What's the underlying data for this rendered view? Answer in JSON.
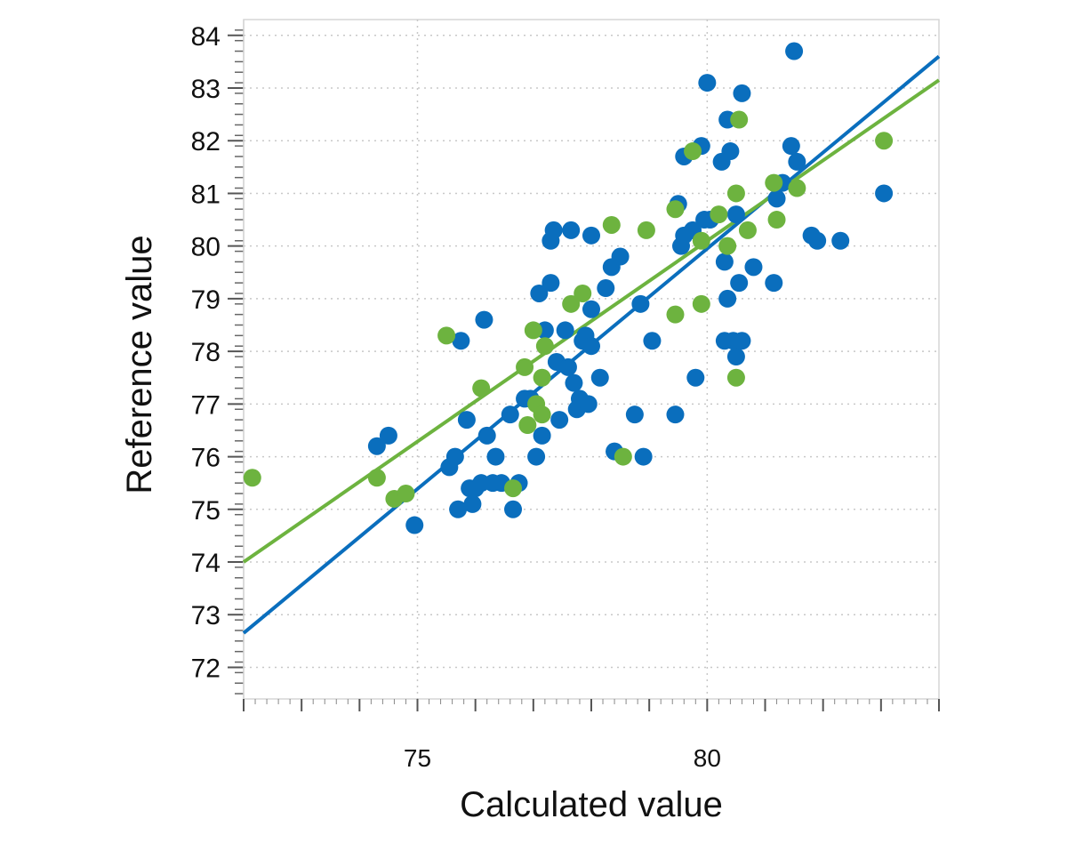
{
  "chart_data": {
    "type": "scatter",
    "title": "",
    "xlabel": "Calculated value",
    "ylabel": "Reference value",
    "xlim": [
      72.0,
      84.0
    ],
    "ylim": [
      71.4,
      84.3
    ],
    "x_tick_labels": [
      75,
      80
    ],
    "x_major_ticks": [
      72,
      73,
      74,
      75,
      76,
      77,
      78,
      79,
      80,
      81,
      82,
      83,
      84
    ],
    "y_tick_labels": [
      72,
      73,
      74,
      75,
      76,
      77,
      78,
      79,
      80,
      81,
      82,
      83,
      84
    ],
    "grid": true,
    "legend": "none",
    "series": [
      {
        "color": "#0a6ebd",
        "points": [
          [
            74.3,
            76.2
          ],
          [
            74.5,
            76.4
          ],
          [
            74.95,
            74.7
          ],
          [
            75.55,
            75.8
          ],
          [
            75.65,
            76.0
          ],
          [
            75.7,
            75.0
          ],
          [
            75.75,
            78.2
          ],
          [
            75.85,
            76.7
          ],
          [
            75.9,
            75.4
          ],
          [
            75.95,
            75.1
          ],
          [
            76.0,
            75.4
          ],
          [
            76.1,
            75.5
          ],
          [
            76.15,
            78.6
          ],
          [
            76.2,
            76.4
          ],
          [
            76.3,
            75.5
          ],
          [
            76.35,
            76.0
          ],
          [
            76.45,
            75.5
          ],
          [
            76.6,
            76.8
          ],
          [
            76.65,
            75.0
          ],
          [
            76.75,
            75.5
          ],
          [
            76.85,
            77.1
          ],
          [
            76.95,
            77.1
          ],
          [
            77.05,
            76.0
          ],
          [
            77.1,
            79.1
          ],
          [
            77.15,
            76.4
          ],
          [
            77.2,
            78.4
          ],
          [
            77.3,
            79.3
          ],
          [
            77.3,
            80.1
          ],
          [
            77.35,
            80.3
          ],
          [
            77.4,
            77.8
          ],
          [
            77.45,
            76.7
          ],
          [
            77.55,
            78.4
          ],
          [
            77.6,
            77.7
          ],
          [
            77.65,
            80.3
          ],
          [
            77.7,
            77.4
          ],
          [
            77.75,
            76.9
          ],
          [
            77.8,
            77.1
          ],
          [
            77.85,
            78.2
          ],
          [
            77.9,
            78.3
          ],
          [
            77.95,
            77.0
          ],
          [
            78.0,
            78.1
          ],
          [
            78.0,
            78.8
          ],
          [
            78.0,
            80.2
          ],
          [
            78.15,
            77.5
          ],
          [
            78.25,
            79.2
          ],
          [
            78.35,
            79.6
          ],
          [
            78.4,
            76.1
          ],
          [
            78.5,
            79.8
          ],
          [
            78.75,
            76.8
          ],
          [
            78.85,
            78.9
          ],
          [
            78.9,
            76.0
          ],
          [
            79.05,
            78.2
          ],
          [
            79.45,
            76.8
          ],
          [
            79.5,
            80.8
          ],
          [
            79.55,
            80.0
          ],
          [
            79.6,
            80.2
          ],
          [
            79.6,
            81.7
          ],
          [
            79.75,
            80.3
          ],
          [
            79.8,
            77.5
          ],
          [
            79.9,
            81.9
          ],
          [
            79.95,
            80.5
          ],
          [
            80.0,
            83.1
          ],
          [
            80.05,
            80.5
          ],
          [
            80.25,
            81.6
          ],
          [
            80.3,
            79.7
          ],
          [
            80.3,
            78.2
          ],
          [
            80.35,
            82.4
          ],
          [
            80.35,
            79.0
          ],
          [
            80.4,
            81.8
          ],
          [
            80.45,
            78.2
          ],
          [
            80.5,
            77.9
          ],
          [
            80.5,
            80.6
          ],
          [
            80.55,
            79.3
          ],
          [
            80.6,
            78.2
          ],
          [
            80.6,
            82.9
          ],
          [
            80.8,
            79.6
          ],
          [
            81.15,
            79.3
          ],
          [
            81.2,
            80.9
          ],
          [
            81.3,
            81.2
          ],
          [
            81.45,
            81.9
          ],
          [
            81.5,
            83.7
          ],
          [
            81.55,
            81.6
          ],
          [
            81.8,
            80.2
          ],
          [
            81.9,
            80.1
          ],
          [
            82.3,
            80.1
          ],
          [
            83.05,
            81.0
          ]
        ]
      },
      {
        "color": "#6db33f",
        "points": [
          [
            72.15,
            75.6
          ],
          [
            74.3,
            75.6
          ],
          [
            74.6,
            75.2
          ],
          [
            74.8,
            75.3
          ],
          [
            75.5,
            78.3
          ],
          [
            76.1,
            77.3
          ],
          [
            76.65,
            75.4
          ],
          [
            76.85,
            77.7
          ],
          [
            76.9,
            76.6
          ],
          [
            77.0,
            78.4
          ],
          [
            77.05,
            77.0
          ],
          [
            77.15,
            77.5
          ],
          [
            77.15,
            76.8
          ],
          [
            77.2,
            78.1
          ],
          [
            77.65,
            78.9
          ],
          [
            77.85,
            79.1
          ],
          [
            78.35,
            80.4
          ],
          [
            78.55,
            76.0
          ],
          [
            78.95,
            80.3
          ],
          [
            79.45,
            80.7
          ],
          [
            79.45,
            78.7
          ],
          [
            79.75,
            81.8
          ],
          [
            79.9,
            78.9
          ],
          [
            79.9,
            80.1
          ],
          [
            80.2,
            80.6
          ],
          [
            80.35,
            80.0
          ],
          [
            80.5,
            81.0
          ],
          [
            80.5,
            77.5
          ],
          [
            80.55,
            82.4
          ],
          [
            80.7,
            80.3
          ],
          [
            81.15,
            81.2
          ],
          [
            81.2,
            80.5
          ],
          [
            81.55,
            81.1
          ],
          [
            83.05,
            82.0
          ]
        ]
      }
    ],
    "fit_lines": [
      {
        "color": "#0a6ebd",
        "x": [
          72.0,
          84.0
        ],
        "y": [
          72.65,
          83.6
        ]
      },
      {
        "color": "#6db33f",
        "x": [
          72.0,
          84.0
        ],
        "y": [
          74.0,
          83.15
        ]
      }
    ]
  }
}
